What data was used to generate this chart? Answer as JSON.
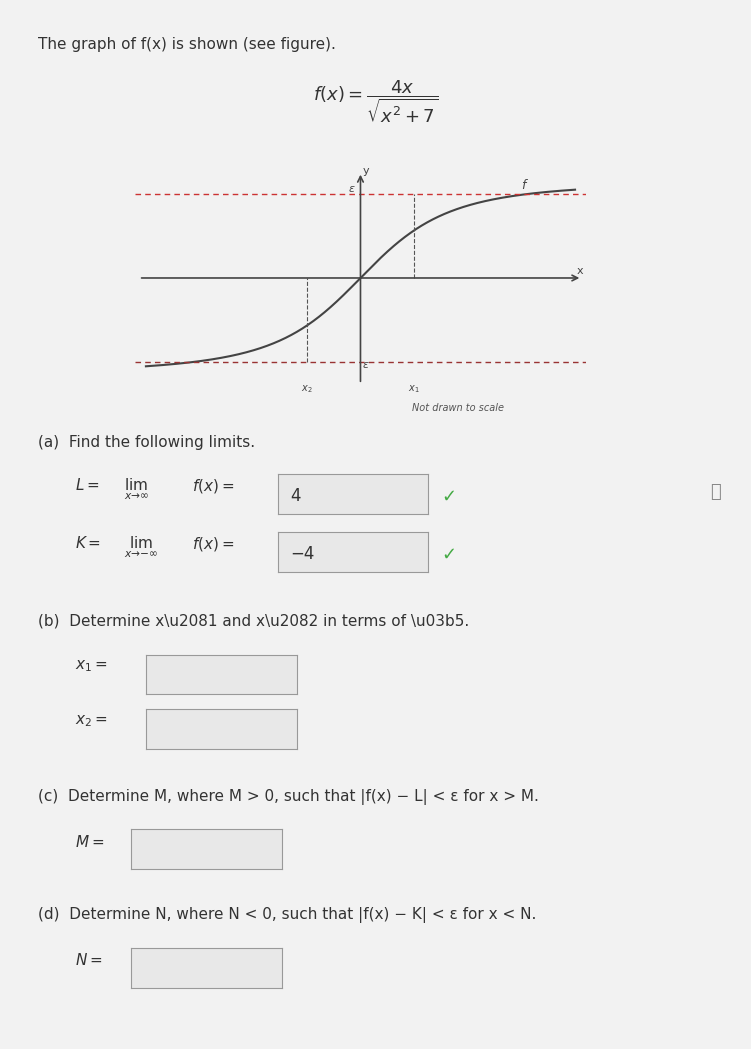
{
  "title_text": "The graph of f(x) is shown (see figure).",
  "formula_text": "f(x) = \\frac{4x}{\\sqrt{x^2 + 7}}",
  "bg_color": "#f0f0f0",
  "graph_bg": "#e8e8e8",
  "curve_color": "#555555",
  "dashed_color_top": "#cc3333",
  "dashed_color_bottom": "#993333",
  "axis_color": "#555555",
  "note_text": "Not drawn to scale",
  "part_a_title": "(a)  Find the following limits.",
  "L_label": "L = ",
  "L_lim_text": "lim  f(x) = ",
  "L_sub": "x \\to \\infty",
  "L_value": "4",
  "K_label": "K = ",
  "K_lim_text": "lim  f(x) = ",
  "K_sub": "x \\to -\\infty",
  "K_value": "-4",
  "part_b_title": "(b)  Determine x\\u2081 and x\\u2082 in terms of \\u03b5.",
  "x1_label": "x\\u2081 =",
  "x2_label": "x\\u2082 =",
  "part_c_title": "(c)  Determine M, where M > 0, such that |f(x) − L| < ε for x > M.",
  "M_label": "M = ",
  "part_d_title": "(d)  Determine N, where N < 0, such that |f(x) − K| < ε for x < N.",
  "N_label": "N = "
}
